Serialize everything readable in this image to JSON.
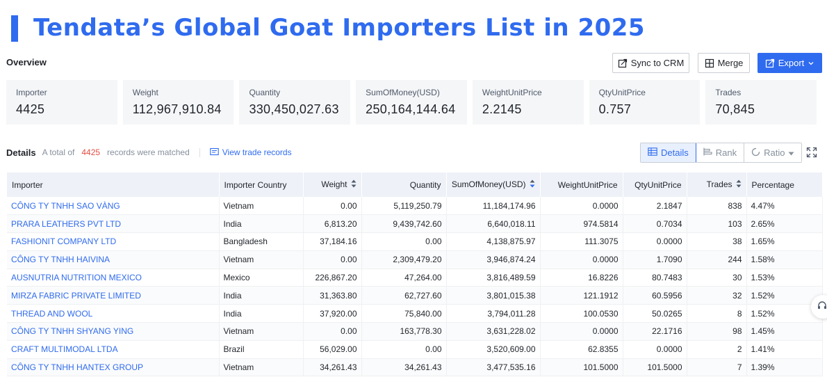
{
  "title": "Tendata’s Global Goat Importers List in 2025",
  "overview_label": "Overview",
  "buttons": {
    "sync": "Sync to CRM",
    "merge": "Merge",
    "export": "Export"
  },
  "stats": [
    {
      "label": "Importer",
      "value": "4425"
    },
    {
      "label": "Weight",
      "value": "112,967,910.84"
    },
    {
      "label": "Quantity",
      "value": "330,450,027.63"
    },
    {
      "label": "SumOfMoney(USD)",
      "value": "250,164,144.64"
    },
    {
      "label": "WeightUnitPrice",
      "value": "2.2145"
    },
    {
      "label": "QtyUnitPrice",
      "value": "0.757"
    },
    {
      "label": "Trades",
      "value": "70,845"
    }
  ],
  "details": {
    "title": "Details",
    "prefix": "A total of",
    "count": "4425",
    "suffix": "records were matched",
    "view_link": "View trade records"
  },
  "view_tabs": {
    "details": "Details",
    "rank": "Rank",
    "ratio": "Ratio"
  },
  "table": {
    "headers": {
      "importer": "Importer",
      "country": "Importer Country",
      "weight": "Weight",
      "quantity": "Quantity",
      "sum": "SumOfMoney(USD)",
      "wup": "WeightUnitPrice",
      "qup": "QtyUnitPrice",
      "trades": "Trades",
      "percentage": "Percentage"
    },
    "rows": [
      {
        "importer": "CÔNG TY TNHH SAO VÀNG",
        "country": "Vietnam",
        "weight": "0.00",
        "quantity": "5,119,250.79",
        "sum": "11,184,174.96",
        "wup": "0.0000",
        "qup": "2.1847",
        "trades": "838",
        "percentage": "4.47%"
      },
      {
        "importer": "PRARA LEATHERS PVT LTD",
        "country": "India",
        "weight": "6,813.20",
        "quantity": "9,439,742.60",
        "sum": "6,640,018.11",
        "wup": "974.5814",
        "qup": "0.7034",
        "trades": "103",
        "percentage": "2.65%"
      },
      {
        "importer": "FASHIONIT COMPANY LTD",
        "country": "Bangladesh",
        "weight": "37,184.16",
        "quantity": "0.00",
        "sum": "4,138,875.97",
        "wup": "111.3075",
        "qup": "0.0000",
        "trades": "38",
        "percentage": "1.65%"
      },
      {
        "importer": "CÔNG TY TNHH HAIVINA",
        "country": "Vietnam",
        "weight": "0.00",
        "quantity": "2,309,479.20",
        "sum": "3,946,874.24",
        "wup": "0.0000",
        "qup": "1.7090",
        "trades": "244",
        "percentage": "1.58%"
      },
      {
        "importer": "AUSNUTRIA NUTRITION MEXICO",
        "country": "Mexico",
        "weight": "226,867.20",
        "quantity": "47,264.00",
        "sum": "3,816,489.59",
        "wup": "16.8226",
        "qup": "80.7483",
        "trades": "30",
        "percentage": "1.53%"
      },
      {
        "importer": "MIRZA FABRIC PRIVATE LIMITED",
        "country": "India",
        "weight": "31,363.80",
        "quantity": "62,727.60",
        "sum": "3,801,015.38",
        "wup": "121.1912",
        "qup": "60.5956",
        "trades": "32",
        "percentage": "1.52%"
      },
      {
        "importer": "THREAD AND WOOL",
        "country": "India",
        "weight": "37,920.00",
        "quantity": "75,840.00",
        "sum": "3,794,011.28",
        "wup": "100.0530",
        "qup": "50.0265",
        "trades": "8",
        "percentage": "1.52%"
      },
      {
        "importer": "CÔNG TY TNHH SHYANG YING",
        "country": "Vietnam",
        "weight": "0.00",
        "quantity": "163,778.30",
        "sum": "3,631,228.02",
        "wup": "0.0000",
        "qup": "22.1716",
        "trades": "98",
        "percentage": "1.45%"
      },
      {
        "importer": "CRAFT MULTIMODAL LTDA",
        "country": "Brazil",
        "weight": "56,029.00",
        "quantity": "0.00",
        "sum": "3,520,609.00",
        "wup": "62.8355",
        "qup": "0.0000",
        "trades": "2",
        "percentage": "1.41%"
      },
      {
        "importer": "CÔNG TY TNHH HANTEX GROUP",
        "country": "Vietnam",
        "weight": "34,261.43",
        "quantity": "34,261.43",
        "sum": "3,477,535.16",
        "wup": "101.5000",
        "qup": "101.5000",
        "trades": "7",
        "percentage": "1.39%"
      }
    ]
  },
  "colors": {
    "accent": "#2f6bef",
    "count_red": "#e34d42",
    "header_bg": "#eef1f7"
  }
}
